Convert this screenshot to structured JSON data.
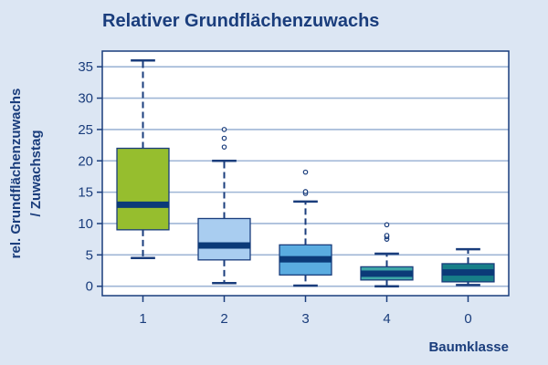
{
  "chart_data": {
    "type": "boxplot",
    "title": "Relativer Grundflächenzuwachs",
    "ylabel_line1": "rel. Grundflächenzuwachs",
    "ylabel_line2": "/ Zuwachstag",
    "xlabel": "Baumklasse",
    "ylim": [
      -1.5,
      37.5
    ],
    "yticks": [
      0,
      5,
      10,
      15,
      20,
      25,
      30,
      35
    ],
    "grid": "horizontal",
    "colors": {
      "background": "#dce6f3",
      "plot_background": "#ffffff",
      "grid": "#9fb6d6",
      "axis": "#1a3d7c",
      "median": "#0b3a78",
      "whisker": "#1a3d7c"
    },
    "categories": [
      "1",
      "2",
      "3",
      "4",
      "0"
    ],
    "boxes": [
      {
        "category": "1",
        "min": 4.5,
        "q1": 9,
        "median": 13,
        "q3": 22,
        "max": 36,
        "outliers": [],
        "color": "#96be2e"
      },
      {
        "category": "2",
        "min": 0.5,
        "q1": 4.2,
        "median": 6.5,
        "q3": 10.8,
        "max": 20,
        "outliers": [
          22.2,
          23.6,
          25
        ],
        "color": "#a9cdf0"
      },
      {
        "category": "3",
        "min": 0.1,
        "q1": 1.8,
        "median": 4.3,
        "q3": 6.6,
        "max": 13.5,
        "outliers": [
          14.8,
          15.1,
          18.2
        ],
        "color": "#5aace0"
      },
      {
        "category": "4",
        "min": 0,
        "q1": 1,
        "median": 2,
        "q3": 3.1,
        "max": 5.2,
        "outliers": [
          7.5,
          7.9,
          8.1,
          9.8
        ],
        "color": "#3ea7a8"
      },
      {
        "category": "0",
        "min": 0.2,
        "q1": 0.7,
        "median": 2.2,
        "q3": 3.6,
        "max": 5.9,
        "outliers": [],
        "color": "#177e88"
      }
    ]
  }
}
